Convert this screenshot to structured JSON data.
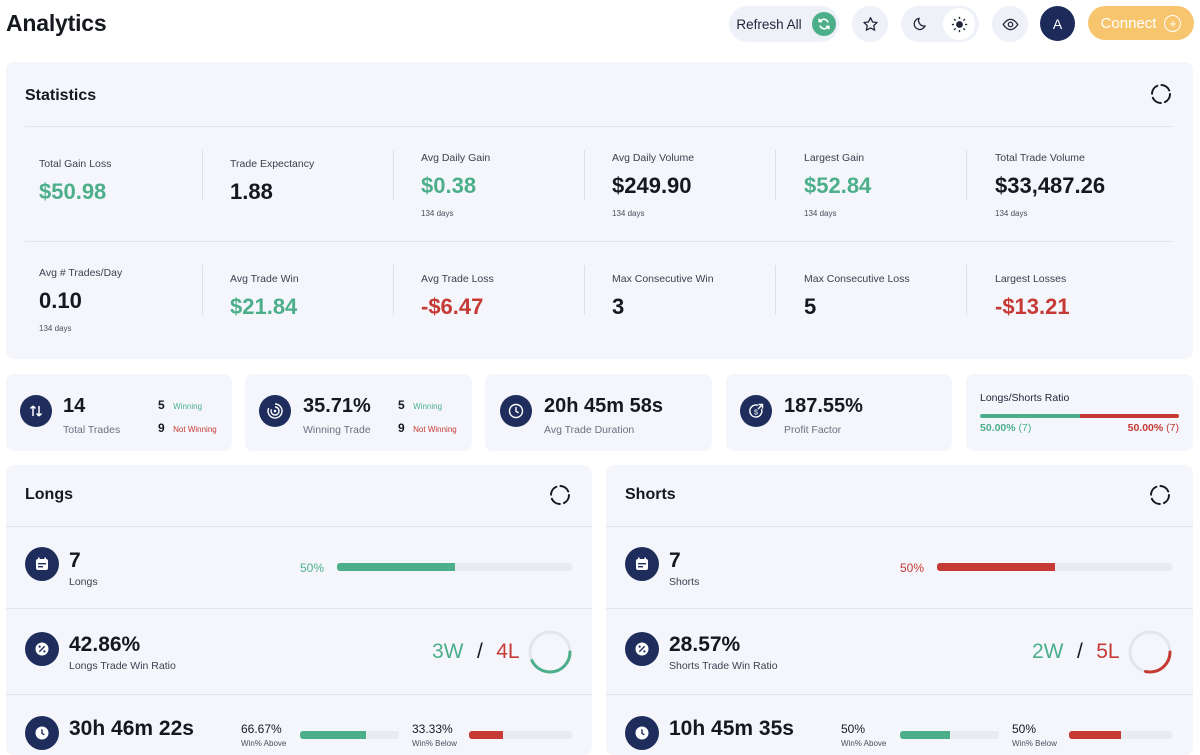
{
  "header": {
    "title": "Analytics",
    "refresh_label": "Refresh All",
    "avatar_initial": "A",
    "connect_label": "Connect"
  },
  "statistics": {
    "title": "Statistics",
    "row1": [
      {
        "label": "Total Gain Loss",
        "value": "$50.98",
        "sub": "",
        "tone": "green"
      },
      {
        "label": "Trade Expectancy",
        "value": "1.88",
        "sub": "",
        "tone": "dark"
      },
      {
        "label": "Avg Daily Gain",
        "value": "$0.38",
        "sub": "134 days",
        "tone": "green"
      },
      {
        "label": "Avg Daily Volume",
        "value": "$249.90",
        "sub": "134 days",
        "tone": "dark"
      },
      {
        "label": "Largest Gain",
        "value": "$52.84",
        "sub": "134 days",
        "tone": "green"
      },
      {
        "label": "Total Trade Volume",
        "value": "$33,487.26",
        "sub": "134 days",
        "tone": "dark"
      }
    ],
    "row2": [
      {
        "label": "Avg # Trades/Day",
        "value": "0.10",
        "sub": "134 days",
        "tone": "dark"
      },
      {
        "label": "Avg Trade Win",
        "value": "$21.84",
        "sub": "",
        "tone": "green"
      },
      {
        "label": "Avg Trade Loss",
        "value": "-$6.47",
        "sub": "",
        "tone": "red"
      },
      {
        "label": "Max Consecutive Win",
        "value": "3",
        "sub": "",
        "tone": "dark"
      },
      {
        "label": "Max Consecutive Loss",
        "value": "5",
        "sub": "",
        "tone": "dark"
      },
      {
        "label": "Largest Losses",
        "value": "-$13.21",
        "sub": "",
        "tone": "red"
      }
    ]
  },
  "summary": {
    "total_trades": {
      "value": "14",
      "label": "Total Trades",
      "win_count": "5",
      "win_label": "Winning",
      "loss_count": "9",
      "loss_label": "Not Winning"
    },
    "winning_trade": {
      "value": "35.71%",
      "label": "Winning Trade",
      "win_count": "5",
      "win_label": "Winning",
      "loss_count": "9",
      "loss_label": "Not Winning"
    },
    "avg_duration": {
      "value": "20h 45m 58s",
      "label": "Avg Trade Duration"
    },
    "profit_factor": {
      "value": "187.55%",
      "label": "Profit Factor"
    },
    "ratio": {
      "title": "Longs/Shorts Ratio",
      "long_pct": "50.00%",
      "long_count": "(7)",
      "short_pct": "50.00%",
      "short_count": "(7)",
      "long_fraction": 0.5
    }
  },
  "longs": {
    "title": "Longs",
    "count": "7",
    "count_label": "Longs",
    "pct_label": "50%",
    "pct_fraction": 0.5,
    "win_ratio": "42.86%",
    "win_ratio_label": "Longs Trade Win Ratio",
    "wins": "3W",
    "losses": "4L",
    "win_fraction": 0.4286,
    "duration": "30h 46m 22s",
    "above_pct": "66.67%",
    "above_label": "Win% Above",
    "above_fraction": 0.6667,
    "below_pct": "33.33%",
    "below_label": "Win% Below",
    "below_fraction": 0.3333
  },
  "shorts": {
    "title": "Shorts",
    "count": "7",
    "count_label": "Shorts",
    "pct_label": "50%",
    "pct_fraction": 0.5,
    "win_ratio": "28.57%",
    "win_ratio_label": "Shorts Trade Win Ratio",
    "wins": "2W",
    "losses": "5L",
    "win_fraction": 0.2857,
    "duration": "10h 45m 35s",
    "above_pct": "50%",
    "above_label": "Win% Above",
    "above_fraction": 0.5,
    "below_pct": "50%",
    "below_label": "Win% Below",
    "below_fraction": 0.5
  },
  "colors": {
    "green": "#4caf8a",
    "red": "#c63a35",
    "navy": "#1f2d5c",
    "accent": "#f6c56e"
  }
}
